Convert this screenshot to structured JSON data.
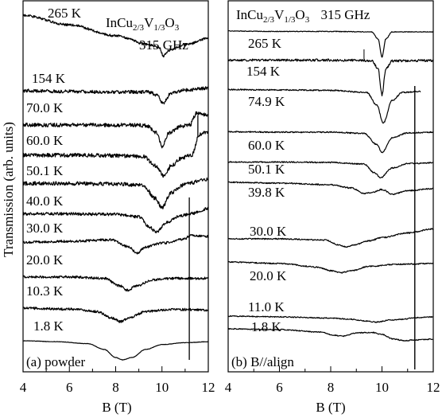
{
  "figure": {
    "y_axis_title": "Transmission (arb. units)",
    "x_axis_title": "B (T)"
  },
  "chart_data": [
    {
      "type": "line",
      "panel_label": "(a) powder",
      "title_main": "InCu",
      "title_sub1": "2/3",
      "title_mid": "V",
      "title_sub2": "1/3",
      "title_end": "O",
      "title_sub3": "3",
      "frequency": "315 GHz",
      "xlabel": "B (T)",
      "ylabel": "Transmission (arb. units)",
      "xlim": [
        4,
        12
      ],
      "xticks": [
        "4",
        "6",
        "8",
        "10",
        "12"
      ],
      "line_color": "#000000",
      "series": [
        {
          "name": "265 K",
          "noise": 0.25,
          "x": [
            4,
            6,
            8,
            9.5,
            9.9,
            10.05,
            10.3,
            11,
            12
          ],
          "y": [
            1.2,
            3.2,
            5.5,
            7.4,
            8.0,
            9.7,
            8.5,
            7.4,
            6.0
          ]
        },
        {
          "name": "154 K",
          "noise": 0.35,
          "x": [
            4,
            6,
            8,
            9.4,
            9.8,
            10.05,
            10.4,
            11,
            12
          ],
          "y": [
            0.3,
            0.5,
            0.6,
            0.6,
            1.2,
            3.0,
            0.8,
            0.2,
            -0.2
          ]
        },
        {
          "name": "70.0 K",
          "noise": 0.4,
          "x": [
            4,
            6,
            8,
            9.3,
            9.8,
            10.0,
            10.3,
            10.8,
            11.2,
            11.5,
            12
          ],
          "y": [
            0.5,
            0.5,
            0.5,
            0.6,
            2.2,
            5.2,
            2.2,
            0.8,
            0.5,
            -2.0,
            -1.5
          ]
        },
        {
          "name": "60.0 K",
          "noise": 0.4,
          "x": [
            4,
            6,
            8,
            9.2,
            9.7,
            10.1,
            10.4,
            10.9,
            11.3,
            11.6,
            12
          ],
          "y": [
            0.3,
            0.3,
            0.4,
            0.6,
            2.5,
            4.7,
            2.5,
            0.8,
            0.3,
            -4.0,
            -4.5
          ]
        },
        {
          "name": "50.1 K",
          "noise": 0.4,
          "x": [
            4,
            6,
            8,
            9.2,
            9.7,
            10.0,
            10.4,
            11.0,
            11.3,
            11.6,
            12
          ],
          "y": [
            0.4,
            0.4,
            0.5,
            0.8,
            3.5,
            5.5,
            2.3,
            0.6,
            0.3,
            -0.3,
            -0.5
          ]
        },
        {
          "name": "40.0 K",
          "noise": 0.3,
          "x": [
            4,
            6,
            8,
            9.0,
            9.5,
            9.75,
            10.2,
            10.8,
            11.3,
            12
          ],
          "y": [
            0.6,
            0.6,
            0.7,
            1.2,
            3.5,
            4.5,
            2.4,
            1.0,
            0.5,
            -0.5
          ]
        },
        {
          "name": "30.0 K",
          "noise": 0.25,
          "x": [
            4,
            6,
            7.8,
            8.6,
            8.9,
            9.3,
            10,
            11,
            11.2,
            12
          ],
          "y": [
            0.2,
            0.0,
            -0.3,
            1.2,
            2.5,
            1.2,
            0.4,
            -0.5,
            -1.2,
            -1.0
          ]
        },
        {
          "name": "20.0 K",
          "noise": 0.25,
          "x": [
            4,
            6,
            7.5,
            8.2,
            8.5,
            8.9,
            9.6,
            10.5,
            11.3,
            12
          ],
          "y": [
            0.3,
            0.3,
            0.6,
            2.2,
            3.1,
            2.2,
            0.9,
            0.6,
            0.6,
            0.6
          ]
        },
        {
          "name": "10.3 K",
          "noise": 0.25,
          "x": [
            4,
            6,
            7.2,
            7.8,
            8.2,
            8.6,
            9.3,
            10.3,
            11,
            12
          ],
          "y": [
            0.5,
            0.7,
            1.2,
            2.5,
            3.3,
            2.5,
            1.2,
            0.8,
            0.8,
            0.9
          ]
        },
        {
          "name": "1.8 K",
          "noise": 0.04,
          "x": [
            4,
            5.5,
            6.8,
            7.5,
            8.0,
            8.3,
            8.7,
            9.3,
            10.0,
            11,
            12
          ],
          "y": [
            0.0,
            0.2,
            0.6,
            1.8,
            3.5,
            4.0,
            3.5,
            1.8,
            0.8,
            0.4,
            0.2
          ]
        }
      ]
    },
    {
      "type": "line",
      "panel_label": "(b) B//align",
      "title_main": "InCu",
      "title_sub1": "2/3",
      "title_mid": "V",
      "title_sub2": "1/3",
      "title_end": "O",
      "title_sub3": "3",
      "frequency": "315 GHz",
      "xlabel": "B (T)",
      "xlim": [
        4,
        12
      ],
      "xticks": [
        "4",
        "6",
        "8",
        "10",
        "12"
      ],
      "line_color": "#000000",
      "series": [
        {
          "name": "265 K",
          "noise": 0.08,
          "x": [
            4,
            6,
            8,
            9.6,
            9.85,
            10.0,
            10.15,
            10.4,
            12
          ],
          "y": [
            0.0,
            0.1,
            0.1,
            0.2,
            2.0,
            6.5,
            2.0,
            0.2,
            0.2
          ]
        },
        {
          "name": "154 K",
          "noise": 0.3,
          "x": [
            4,
            6,
            8,
            9.6,
            9.85,
            10.0,
            10.15,
            10.4,
            12
          ],
          "y": [
            0.3,
            0.3,
            0.3,
            0.4,
            2.5,
            9.0,
            2.5,
            0.5,
            0.4
          ]
        },
        {
          "name": "74.9 K",
          "noise": 0.15,
          "x": [
            4,
            6,
            8,
            9.4,
            9.8,
            10.05,
            10.4,
            10.8,
            11.5
          ],
          "y": [
            0.1,
            0.2,
            0.3,
            0.8,
            4.0,
            8.5,
            2.8,
            0.8,
            0.6
          ]
        },
        {
          "name": "60.0 K",
          "noise": 0.15,
          "x": [
            4,
            6,
            8,
            9.3,
            9.8,
            10.0,
            10.4,
            11,
            12
          ],
          "y": [
            0.3,
            0.4,
            0.4,
            0.7,
            3.5,
            5.5,
            1.8,
            0.6,
            0.4
          ]
        },
        {
          "name": "50.1 K",
          "noise": 0.15,
          "x": [
            4,
            6,
            8,
            9.3,
            9.7,
            9.95,
            10.4,
            11,
            12
          ],
          "y": [
            0.3,
            0.3,
            0.4,
            0.8,
            3.0,
            4.2,
            1.8,
            0.7,
            0.5
          ]
        },
        {
          "name": "39.8 K",
          "noise": 0.15,
          "x": [
            4,
            6,
            8,
            8.8,
            9.3,
            9.6,
            10.0,
            10.4,
            11,
            12
          ],
          "y": [
            0.2,
            0.4,
            0.8,
            1.6,
            3.0,
            2.8,
            2.0,
            3.2,
            2.3,
            1.8
          ]
        },
        {
          "name": "30.0 K",
          "noise": 0.15,
          "x": [
            4,
            6,
            7.8,
            8.3,
            8.6,
            8.9,
            9.5,
            10,
            11,
            12
          ],
          "y": [
            0.0,
            0.0,
            0.3,
            1.5,
            2.0,
            1.5,
            0.5,
            -0.3,
            -1.5,
            -2.5
          ]
        },
        {
          "name": "20.0 K",
          "noise": 0.15,
          "x": [
            4,
            6,
            7.5,
            8.0,
            8.4,
            8.8,
            9.5,
            10.5,
            12
          ],
          "y": [
            0.2,
            0.6,
            1.5,
            2.4,
            2.9,
            2.4,
            1.3,
            0.8,
            0.6
          ]
        },
        {
          "name": "11.0 K",
          "noise": 0.12,
          "x": [
            4,
            6,
            8,
            8.8,
            9.3,
            9.8,
            10.3,
            10.8,
            11.3,
            12
          ],
          "y": [
            0.0,
            0.2,
            0.5,
            0.8,
            1.2,
            1.5,
            1.0,
            0.8,
            0.4,
            0.2
          ]
        },
        {
          "name": "1.8 K",
          "noise": 0.12,
          "x": [
            4,
            6,
            7.6,
            8.1,
            8.5,
            9.0,
            9.6,
            10.0,
            10.4,
            10.9,
            11.2,
            12
          ],
          "y": [
            0.0,
            0.2,
            0.8,
            1.6,
            1.8,
            1.0,
            0.9,
            1.4,
            2.5,
            3.0,
            2.8,
            2.6
          ]
        }
      ]
    }
  ]
}
